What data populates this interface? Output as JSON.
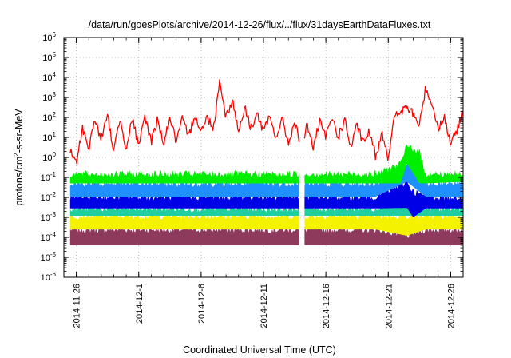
{
  "chart_data": {
    "type": "line",
    "title": "/data/run/goesPlots/archive/2014-12-26/flux/../flux/31daysEarthDataFluxes.txt",
    "xlabel": "Coordinated Universal Time (UTC)",
    "ylabel": {
      "base": "protons/cm",
      "sup": "2",
      "rest": "-s-sr-MeV"
    },
    "y_scale": "log",
    "ylim": [
      1e-06,
      1000000.0
    ],
    "y_ticks": [
      {
        "value": 1e-06,
        "base": "10",
        "exp": "-6"
      },
      {
        "value": 1e-05,
        "base": "10",
        "exp": "-5"
      },
      {
        "value": 0.0001,
        "base": "10",
        "exp": "-4"
      },
      {
        "value": 0.001,
        "base": "10",
        "exp": "-3"
      },
      {
        "value": 0.01,
        "base": "10",
        "exp": "-2"
      },
      {
        "value": 0.1,
        "base": "10",
        "exp": "-1"
      },
      {
        "value": 1,
        "base": "10",
        "exp": "0"
      },
      {
        "value": 10,
        "base": "10",
        "exp": "1"
      },
      {
        "value": 100,
        "base": "10",
        "exp": "2"
      },
      {
        "value": 1000,
        "base": "10",
        "exp": "3"
      },
      {
        "value": 10000,
        "base": "10",
        "exp": "4"
      },
      {
        "value": 100000,
        "base": "10",
        "exp": "5"
      },
      {
        "value": 1000000,
        "base": "10",
        "exp": "6"
      }
    ],
    "xlim": [
      "2014-11-25",
      "2014-12-27"
    ],
    "x_ticks": [
      "2014-11-26",
      "2014-12-1",
      "2014-12-6",
      "2014-12-11",
      "2014-12-16",
      "2014-12-21",
      "2014-12-26"
    ],
    "x_tick_dates": [
      "2014-11-26",
      "2014-12-01",
      "2014-12-06",
      "2014-12-11",
      "2014-12-16",
      "2014-12-21",
      "2014-12-26"
    ],
    "grid": true,
    "legend": "none",
    "data_gap": [
      "2014-12-13T22:00",
      "2014-12-14T07:00"
    ],
    "series": [
      {
        "color": "#8e3a5c",
        "band": true,
        "x": [
          "2014-11-25T12:00",
          "2014-12-01",
          "2014-12-06",
          "2014-12-13T22:00",
          "2014-12-14T07:00",
          "2014-12-20",
          "2014-12-22T12:00",
          "2014-12-24",
          "2014-12-27"
        ],
        "y_low": [
          4e-05,
          4e-05,
          4e-05,
          4e-05,
          4e-05,
          4e-05,
          4e-05,
          4e-05,
          4e-05
        ],
        "y_high": [
          0.00025,
          0.00025,
          0.00025,
          0.00025,
          0.00025,
          0.00025,
          0.00012,
          0.00025,
          0.00025
        ]
      },
      {
        "color": "#f5f200",
        "band": true,
        "x": [
          "2014-11-25T12:00",
          "2014-12-01",
          "2014-12-06",
          "2014-12-13T22:00",
          "2014-12-14T07:00",
          "2014-12-20",
          "2014-12-22T12:00",
          "2014-12-24",
          "2014-12-27"
        ],
        "y_low": [
          0.00025,
          0.00025,
          0.00025,
          0.00025,
          0.00025,
          0.00025,
          0.00012,
          0.00025,
          0.00025
        ],
        "y_high": [
          0.0012,
          0.0012,
          0.0012,
          0.0012,
          0.0012,
          0.0012,
          0.0012,
          0.0012,
          0.0012
        ]
      },
      {
        "color": "#1fcfa0",
        "band": true,
        "x": [
          "2014-11-25T12:00",
          "2014-12-01",
          "2014-12-06",
          "2014-12-13T22:00",
          "2014-12-14T07:00",
          "2014-12-15",
          "2014-12-20",
          "2014-12-22T12:00",
          "2014-12-24",
          "2014-12-27"
        ],
        "y_low": [
          0.0012,
          0.0012,
          0.0012,
          0.0012,
          0.0012,
          0.0012,
          0.0012,
          0.0012,
          0.0012,
          0.0012
        ],
        "y_high": [
          0.0028,
          0.0028,
          0.0028,
          0.0028,
          0.006,
          0.0028,
          0.0028,
          0.02,
          0.0028,
          0.0028
        ]
      },
      {
        "color": "#0000e6",
        "band": true,
        "x": [
          "2014-11-25T12:00",
          "2014-12-01",
          "2014-12-06",
          "2014-12-13T22:00",
          "2014-12-14T07:00",
          "2014-12-20",
          "2014-12-22T12:00",
          "2014-12-23",
          "2014-12-24",
          "2014-12-27"
        ],
        "y_low": [
          0.0028,
          0.0028,
          0.0028,
          0.0028,
          0.0028,
          0.0028,
          0.003,
          0.001,
          0.0028,
          0.0028
        ],
        "y_high": [
          0.011,
          0.011,
          0.011,
          0.011,
          0.011,
          0.011,
          0.06,
          0.02,
          0.011,
          0.011
        ]
      },
      {
        "color": "#1e90ff",
        "band": true,
        "x": [
          "2014-11-25T12:00",
          "2014-12-01",
          "2014-12-06",
          "2014-12-13T22:00",
          "2014-12-14T07:00",
          "2014-12-20",
          "2014-12-22T12:00",
          "2014-12-24",
          "2014-12-27"
        ],
        "y_low": [
          0.011,
          0.011,
          0.011,
          0.011,
          0.011,
          0.011,
          0.06,
          0.011,
          0.011
        ],
        "y_high": [
          0.05,
          0.05,
          0.05,
          0.05,
          0.05,
          0.05,
          0.5,
          0.05,
          0.06
        ]
      },
      {
        "color": "#00ee00",
        "band": true,
        "x": [
          "2014-11-25T12:00",
          "2014-12-01",
          "2014-12-06",
          "2014-12-13T22:00",
          "2014-12-14T07:00",
          "2014-12-20",
          "2014-12-22",
          "2014-12-22T12:00",
          "2014-12-23T12:00",
          "2014-12-24",
          "2014-12-27"
        ],
        "y_low": [
          0.05,
          0.05,
          0.05,
          0.05,
          0.05,
          0.05,
          0.05,
          0.5,
          0.05,
          0.05,
          0.06
        ],
        "y_high": [
          0.15,
          0.15,
          0.15,
          0.15,
          0.15,
          0.15,
          0.5,
          4,
          2,
          0.15,
          0.15
        ]
      },
      {
        "color": "#ff0000",
        "band": false,
        "x": [
          "2014-11-25T12:00",
          "2014-11-26",
          "2014-11-26T12:00",
          "2014-11-27",
          "2014-11-27T12:00",
          "2014-11-28",
          "2014-11-28T12:00",
          "2014-11-29",
          "2014-11-29T12:00",
          "2014-11-30",
          "2014-11-30T12:00",
          "2014-12-01",
          "2014-12-01T12:00",
          "2014-12-02",
          "2014-12-02T12:00",
          "2014-12-03",
          "2014-12-03T12:00",
          "2014-12-04",
          "2014-12-04T12:00",
          "2014-12-05",
          "2014-12-05T12:00",
          "2014-12-06",
          "2014-12-06T12:00",
          "2014-12-07",
          "2014-12-07T12:00",
          "2014-12-08",
          "2014-12-08T12:00",
          "2014-12-09",
          "2014-12-09T12:00",
          "2014-12-10",
          "2014-12-10T12:00",
          "2014-12-11",
          "2014-12-11T12:00",
          "2014-12-12",
          "2014-12-12T12:00",
          "2014-12-13",
          "2014-12-13T12:00",
          "2014-12-13T22:00",
          "2014-12-14T07:00",
          "2014-12-14T12:00",
          "2014-12-15",
          "2014-12-15T12:00",
          "2014-12-16",
          "2014-12-16T12:00",
          "2014-12-17",
          "2014-12-17T12:00",
          "2014-12-18",
          "2014-12-18T12:00",
          "2014-12-19",
          "2014-12-19T12:00",
          "2014-12-20",
          "2014-12-20T12:00",
          "2014-12-21",
          "2014-12-21T12:00",
          "2014-12-22",
          "2014-12-22T12:00",
          "2014-12-23",
          "2014-12-23T12:00",
          "2014-12-24",
          "2014-12-24T12:00",
          "2014-12-25",
          "2014-12-25T12:00",
          "2014-12-26",
          "2014-12-26T12:00",
          "2014-12-27"
        ],
        "y": [
          2,
          0.5,
          30,
          3,
          80,
          8,
          120,
          2,
          90,
          3,
          100,
          3,
          120,
          6,
          80,
          5,
          100,
          6,
          80,
          10,
          150,
          20,
          100,
          30,
          8000,
          100,
          800,
          20,
          300,
          30,
          150,
          20,
          100,
          10,
          80,
          5,
          60,
          5,
          10,
          50,
          3,
          60,
          10,
          100,
          10,
          80,
          3,
          40,
          5,
          20,
          1,
          20,
          1,
          100,
          200,
          300,
          150,
          40,
          3000,
          500,
          30,
          100,
          5,
          20,
          200
        ]
      }
    ]
  }
}
